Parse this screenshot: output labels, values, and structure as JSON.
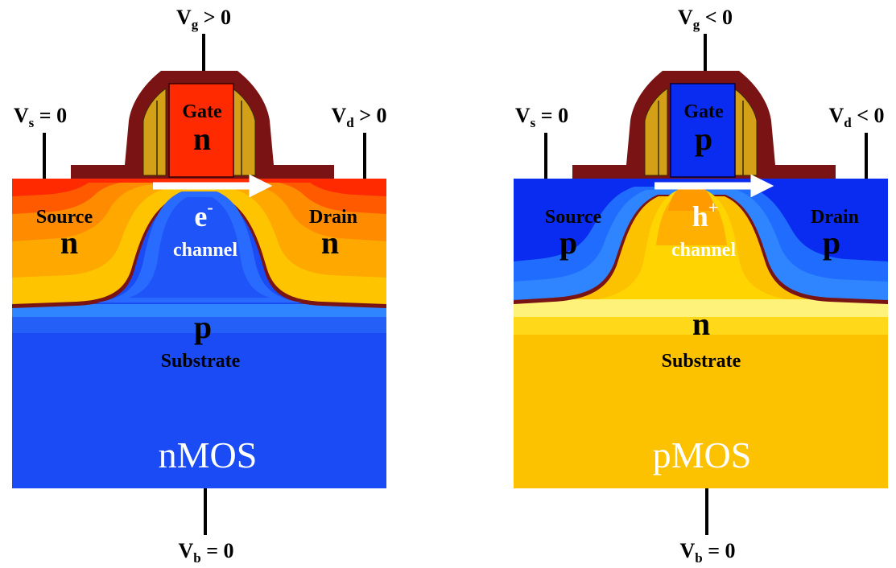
{
  "colors": {
    "n_red": "#ff2a00",
    "n_orange": "#ff8c00",
    "n_yellow": "#ffc400",
    "p_blue": "#0a2cf0",
    "p_blue_mid": "#1f6cff",
    "substrate_yellow": "#fcc200",
    "gate_frame": "#7a1414",
    "spacer_gold": "#d4a017",
    "arrow_white": "#ffffff"
  },
  "nmos": {
    "gate_terminal": {
      "main": "V",
      "sub": "g",
      "rel": " > 0"
    },
    "source_terminal": {
      "main": "V",
      "sub": "s",
      "rel": " = 0"
    },
    "drain_terminal": {
      "main": "V",
      "sub": "d",
      "rel": " > 0"
    },
    "body_terminal": {
      "main": "V",
      "sub": "b",
      "rel": " = 0"
    },
    "gate_label": "Gate",
    "gate_type": "n",
    "source_label": "Source",
    "source_type": "n",
    "drain_label": "Drain",
    "drain_type": "n",
    "carrier": {
      "main": "e",
      "sup": "-"
    },
    "channel_label": "channel",
    "substrate_type": "p",
    "substrate_label": "Substrate",
    "device_name": "nMOS",
    "carrier_arrow": "arrow-right-icon"
  },
  "pmos": {
    "gate_terminal": {
      "main": "V",
      "sub": "g",
      "rel": " < 0"
    },
    "source_terminal": {
      "main": "V",
      "sub": "s",
      "rel": " = 0"
    },
    "drain_terminal": {
      "main": "V",
      "sub": "d",
      "rel": " < 0"
    },
    "body_terminal": {
      "main": "V",
      "sub": "b",
      "rel": " = 0"
    },
    "gate_label": "Gate",
    "gate_type": "p",
    "source_label": "Source",
    "source_type": "p",
    "drain_label": "Drain",
    "drain_type": "p",
    "carrier": {
      "main": "h",
      "sup": "+"
    },
    "channel_label": "channel",
    "substrate_type": "n",
    "substrate_label": "Substrate",
    "device_name": "pMOS",
    "carrier_arrow": "arrow-right-icon"
  }
}
